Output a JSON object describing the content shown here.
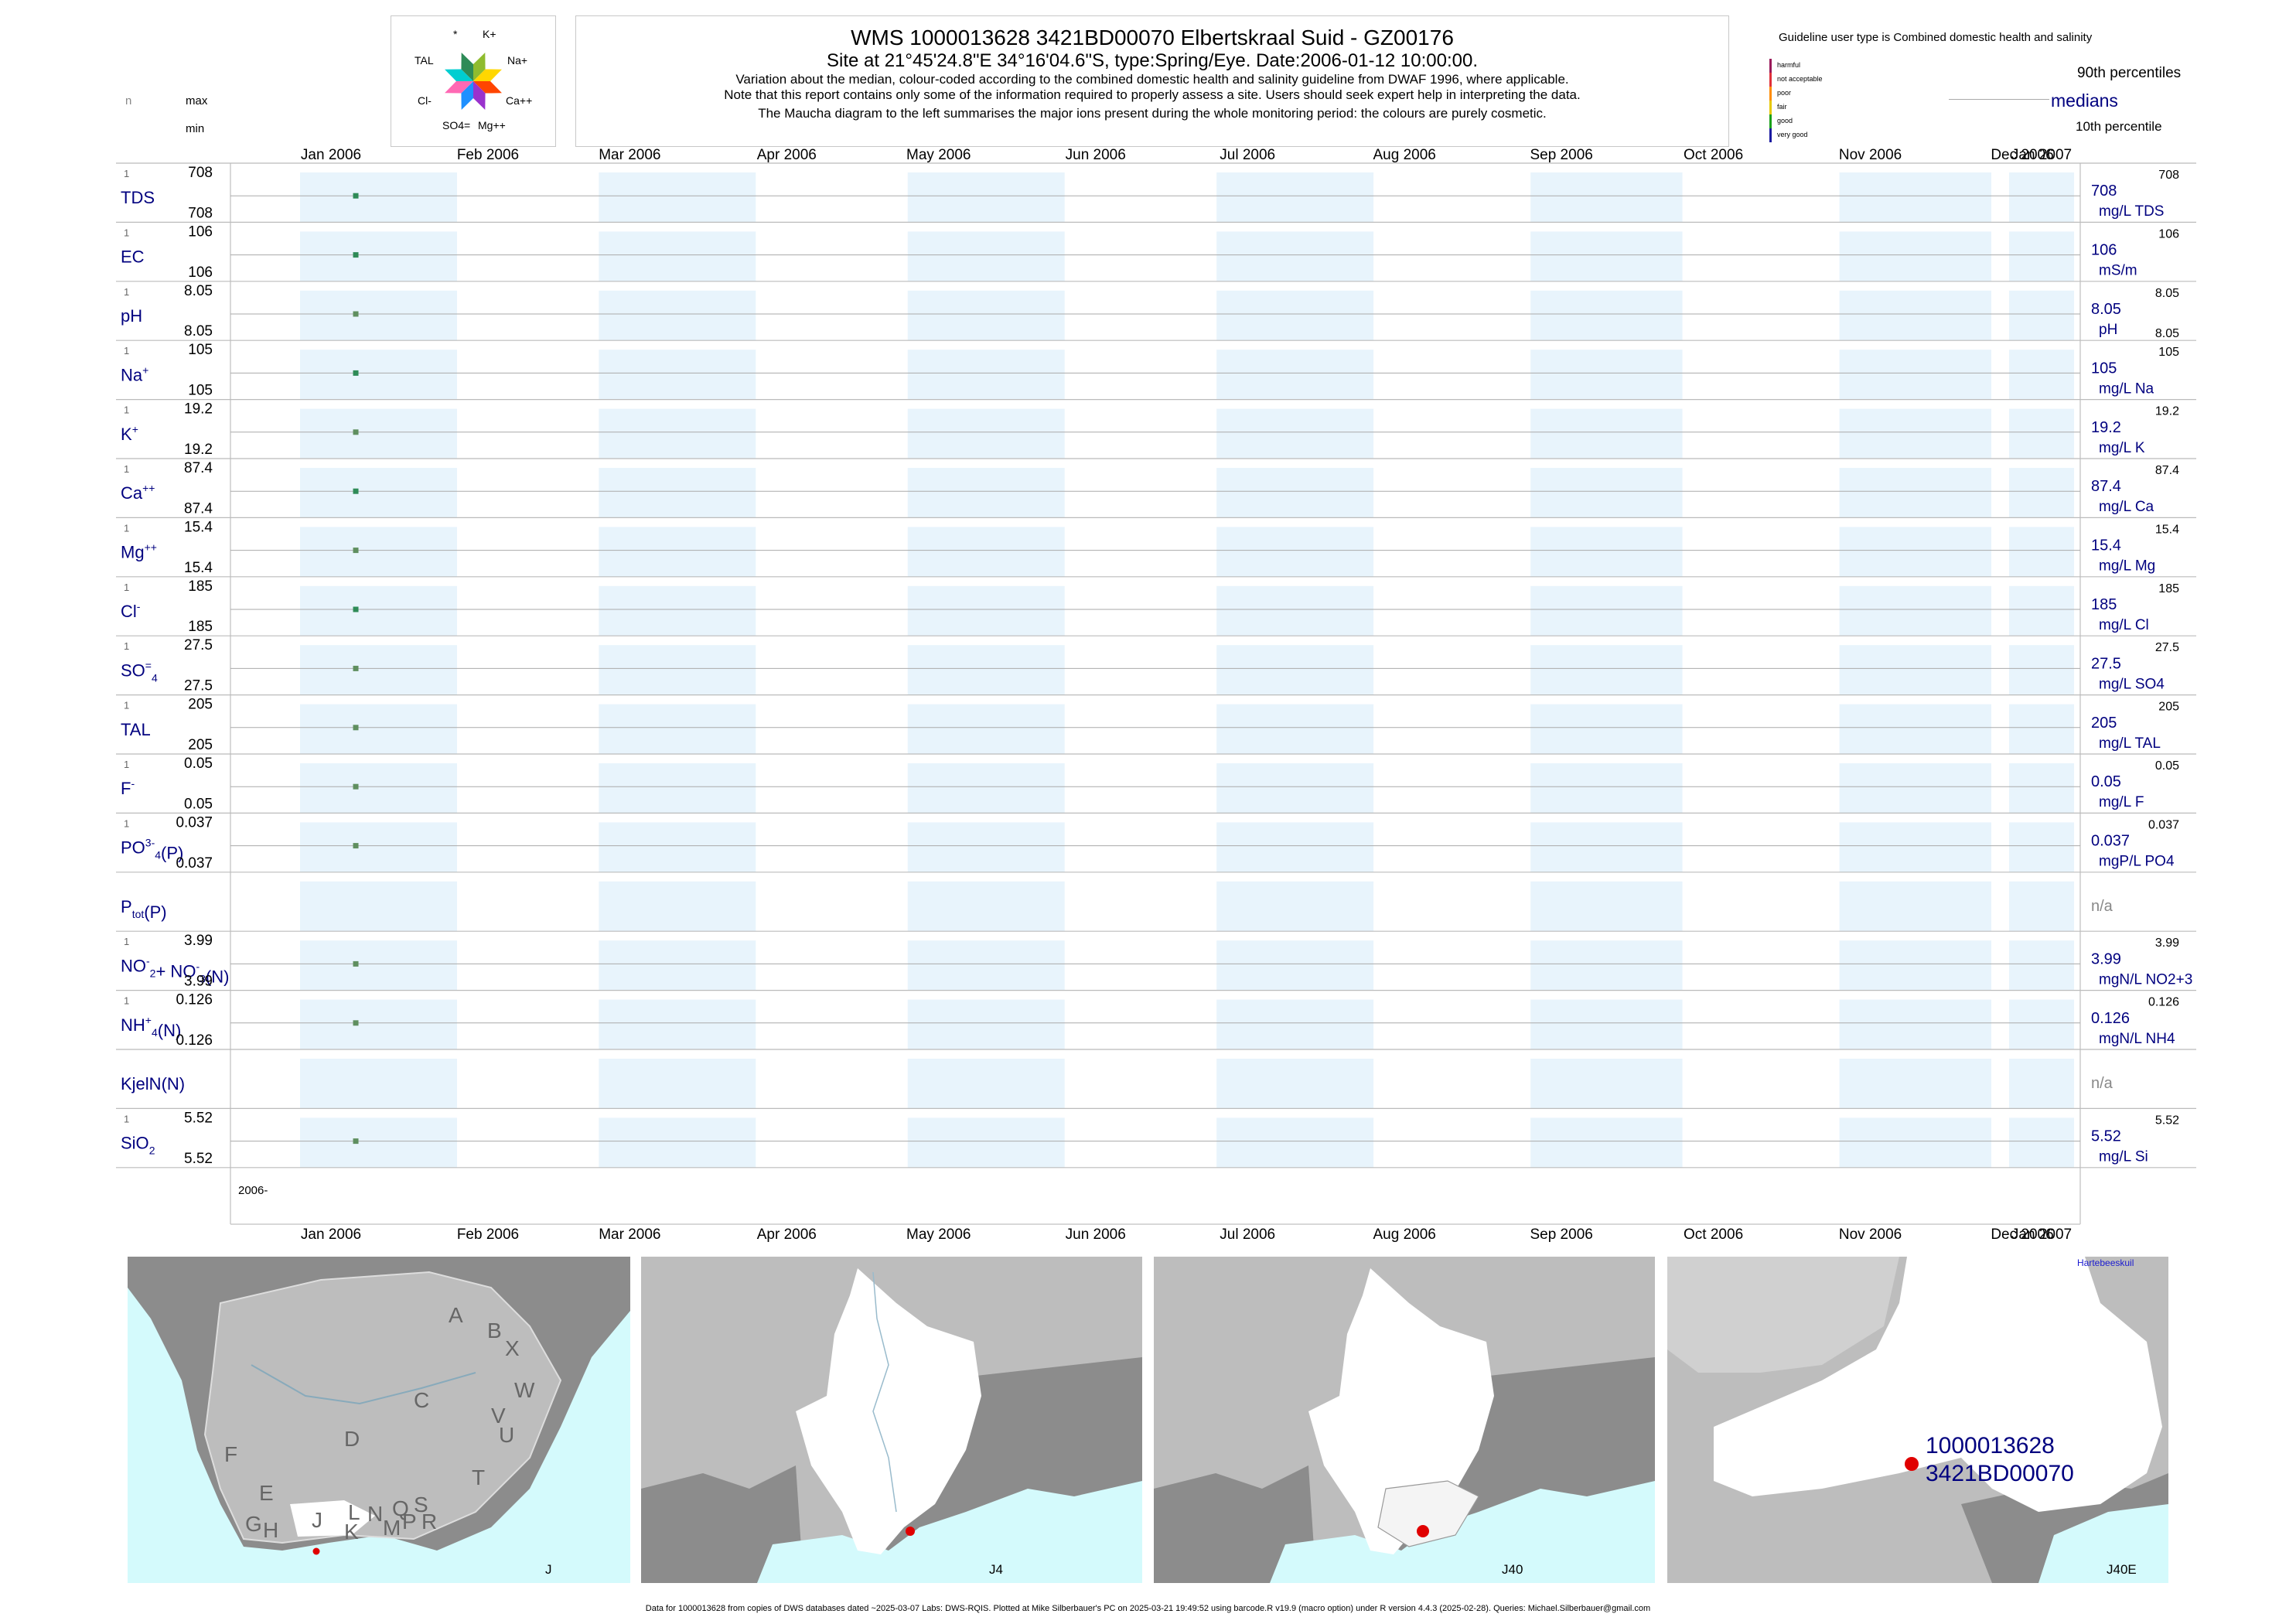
{
  "header": {
    "title": "WMS 1000013628 3421BD00070 Elbertskraal Suid - GZ00176",
    "subtitle": "Site at 21°45'24.8\"E 34°16'04.6\"S, type:Spring/Eye. Date:2006-01-12 10:00:00.",
    "note1": "Variation about the median,  colour-coded according to the combined domestic health and salinity guideline from DWAF 1996, where applicable.",
    "note2": "Note that this report contains only some of the information required to properly assess a site. Users should seek expert help in interpreting the data.",
    "note3": "The Maucha diagram to the left summarises the major ions present during the whole monitoring period: the colours are purely cosmetic."
  },
  "maucha": {
    "labels": [
      "*",
      "K+",
      "TAL",
      "Na+",
      "Cl-",
      "Ca++",
      "SO4=",
      "Mg++"
    ],
    "colors": [
      "#8fbc2f",
      "#ffd700",
      "#ff4500",
      "#9a32cd",
      "#1e90ff",
      "#ff69b4",
      "#00ced1",
      "#2e8b57"
    ]
  },
  "left_head": {
    "n": "n",
    "max": "max",
    "min": "min"
  },
  "legend": {
    "guideline_text": "Guideline user type is Combined domestic health and salinity",
    "categories": [
      "harmful",
      "not acceptable",
      "poor",
      "fair",
      "good",
      "very good"
    ],
    "category_colors": [
      "#9a1a5a",
      "#e0303a",
      "#ff8c00",
      "#e6c800",
      "#1aa01a",
      "#1a1aa0"
    ],
    "p90": "90th percentiles",
    "medians": "medians",
    "p10": "10th percentile"
  },
  "chart_data": {
    "type": "scatter",
    "x_axis_type": "date",
    "xlim": [
      "2006-01-01",
      "2007-01-01"
    ],
    "month_ticks": [
      "Jan 2006",
      "Feb 2006",
      "Mar 2006",
      "Apr 2006",
      "May 2006",
      "Jun 2006",
      "Jul 2006",
      "Aug 2006",
      "Sep 2006",
      "Oct 2006",
      "Nov 2006",
      "Dec 2006",
      "Jan 2007"
    ],
    "bottom_year_label": "2006-",
    "sample_date": "2006-01-12",
    "rows": [
      {
        "label": "TDS",
        "n": "1",
        "max": "708",
        "min": "708",
        "value": 708,
        "median_label": "708",
        "unit": "mg/L TDS",
        "p90_label": "708",
        "p10_label": "",
        "color": "#2e8b57"
      },
      {
        "label": "EC",
        "n": "1",
        "max": "106",
        "min": "106",
        "value": 106,
        "median_label": "106",
        "unit": "mS/m",
        "p90_label": "106",
        "p10_label": "",
        "color": "#2e8b57"
      },
      {
        "label": "pH",
        "n": "1",
        "max": "8.05",
        "min": "8.05",
        "value": 8.05,
        "median_label": "8.05",
        "unit": "pH",
        "p90_label": "8.05",
        "p10_label": "8.05",
        "color": "#5f8f5f"
      },
      {
        "label": "Na",
        "sup": "+",
        "n": "1",
        "max": "105",
        "min": "105",
        "value": 105,
        "median_label": "105",
        "unit": "mg/L Na",
        "p90_label": "105",
        "p10_label": "",
        "color": "#2e8b57"
      },
      {
        "label": "K",
        "sup": "+",
        "n": "1",
        "max": "19.2",
        "min": "19.2",
        "value": 19.2,
        "median_label": "19.2",
        "unit": "mg/L K",
        "p90_label": "19.2",
        "p10_label": "",
        "color": "#5f8f5f"
      },
      {
        "label": "Ca",
        "sup": "++",
        "n": "1",
        "max": "87.4",
        "min": "87.4",
        "value": 87.4,
        "median_label": "87.4",
        "unit": "mg/L Ca",
        "p90_label": "87.4",
        "p10_label": "",
        "color": "#2e8b57"
      },
      {
        "label": "Mg",
        "sup": "++",
        "n": "1",
        "max": "15.4",
        "min": "15.4",
        "value": 15.4,
        "median_label": "15.4",
        "unit": "mg/L Mg",
        "p90_label": "15.4",
        "p10_label": "",
        "color": "#5f8f5f"
      },
      {
        "label": "Cl",
        "sup": "-",
        "n": "1",
        "max": "185",
        "min": "185",
        "value": 185,
        "median_label": "185",
        "unit": "mg/L Cl",
        "p90_label": "185",
        "p10_label": "",
        "color": "#2e8b57"
      },
      {
        "label": "SO",
        "sub": "4",
        "sup": "=",
        "n": "1",
        "max": "27.5",
        "min": "27.5",
        "value": 27.5,
        "median_label": "27.5",
        "unit": "mg/L SO4",
        "p90_label": "27.5",
        "p10_label": "",
        "color": "#5f8f5f"
      },
      {
        "label": "TAL",
        "n": "1",
        "max": "205",
        "min": "205",
        "value": 205,
        "median_label": "205",
        "unit": "mg/L TAL",
        "p90_label": "205",
        "p10_label": "",
        "color": "#5f8f5f"
      },
      {
        "label": "F",
        "sup": "-",
        "n": "1",
        "max": "0.05",
        "min": "0.05",
        "value": 0.05,
        "median_label": "0.05",
        "unit": "mg/L F",
        "p90_label": "0.05",
        "p10_label": "",
        "color": "#5f8f5f"
      },
      {
        "label": "PO",
        "sub": "4",
        "sup": "3-",
        "suffix": "(P)",
        "n": "1",
        "max": "0.037",
        "min": "0.037",
        "value": 0.037,
        "median_label": "0.037",
        "unit": "mgP/L PO4",
        "p90_label": "0.037",
        "p10_label": "",
        "color": "#5f8f5f"
      },
      {
        "label": "P",
        "sub": "tot",
        "suffix": "(P)",
        "n": "",
        "max": "",
        "min": "",
        "value": null,
        "median_label": "n/a",
        "unit": "",
        "p90_label": "",
        "p10_label": "",
        "color": "#888888"
      },
      {
        "label": "NO",
        "sub": "2",
        "sup": "-",
        "suffix": "+ NO",
        "sub2": "3",
        "sup2": "-",
        "suffix2": "(N)",
        "n": "1",
        "max": "3.99",
        "min": "3.99",
        "value": 3.99,
        "median_label": "3.99",
        "unit": "mgN/L NO2+3",
        "p90_label": "3.99",
        "p10_label": "",
        "color": "#5f8f5f"
      },
      {
        "label": "NH",
        "sub": "4",
        "sup": "+",
        "suffix": "(N)",
        "n": "1",
        "max": "0.126",
        "min": "0.126",
        "value": 0.126,
        "median_label": "0.126",
        "unit": "mgN/L NH4",
        "p90_label": "0.126",
        "p10_label": "",
        "color": "#5f8f5f"
      },
      {
        "label": "KjelN(N)",
        "n": "",
        "max": "",
        "min": "",
        "value": null,
        "median_label": "n/a",
        "unit": "",
        "p90_label": "",
        "p10_label": "",
        "color": "#888888"
      },
      {
        "label": "SiO",
        "sub": "2",
        "n": "1",
        "max": "5.52",
        "min": "5.52",
        "value": 5.52,
        "median_label": "5.52",
        "unit": "mg/L Si",
        "p90_label": "5.52",
        "p10_label": "",
        "color": "#5f8f5f"
      }
    ]
  },
  "maps": [
    {
      "id": "J",
      "region_letters": [
        "A",
        "B",
        "X",
        "W",
        "C",
        "V",
        "U",
        "D",
        "T",
        "F",
        "E",
        "L",
        "N",
        "Q",
        "S",
        "R",
        "G",
        "H",
        "J",
        "K",
        "M",
        "P"
      ]
    },
    {
      "id": "J4"
    },
    {
      "id": "J40"
    },
    {
      "id": "J40E",
      "place": "Hartebeeskuil",
      "site_label1": "1000013628",
      "site_label2": "3421BD00070"
    }
  ],
  "colors": {
    "band": "#e8f4fc",
    "sea": "#d4fafc",
    "land_dark": "#8c8c8c",
    "land_mid": "#bdbdbd",
    "catchment": "#ffffff",
    "site": "#e00000",
    "label_blue": "#00007f"
  },
  "footer": "Data for 1000013628 from copies of DWS databases dated ~2025-03-07 Labs: DWS-RQIS. Plotted at Mike Silberbauer's PC on 2025-03-21 19:49:52 using barcode.R v19.9 (macro option) under R version 4.4.3 (2025-02-28). Queries: Michael.Silberbauer@gmail.com"
}
